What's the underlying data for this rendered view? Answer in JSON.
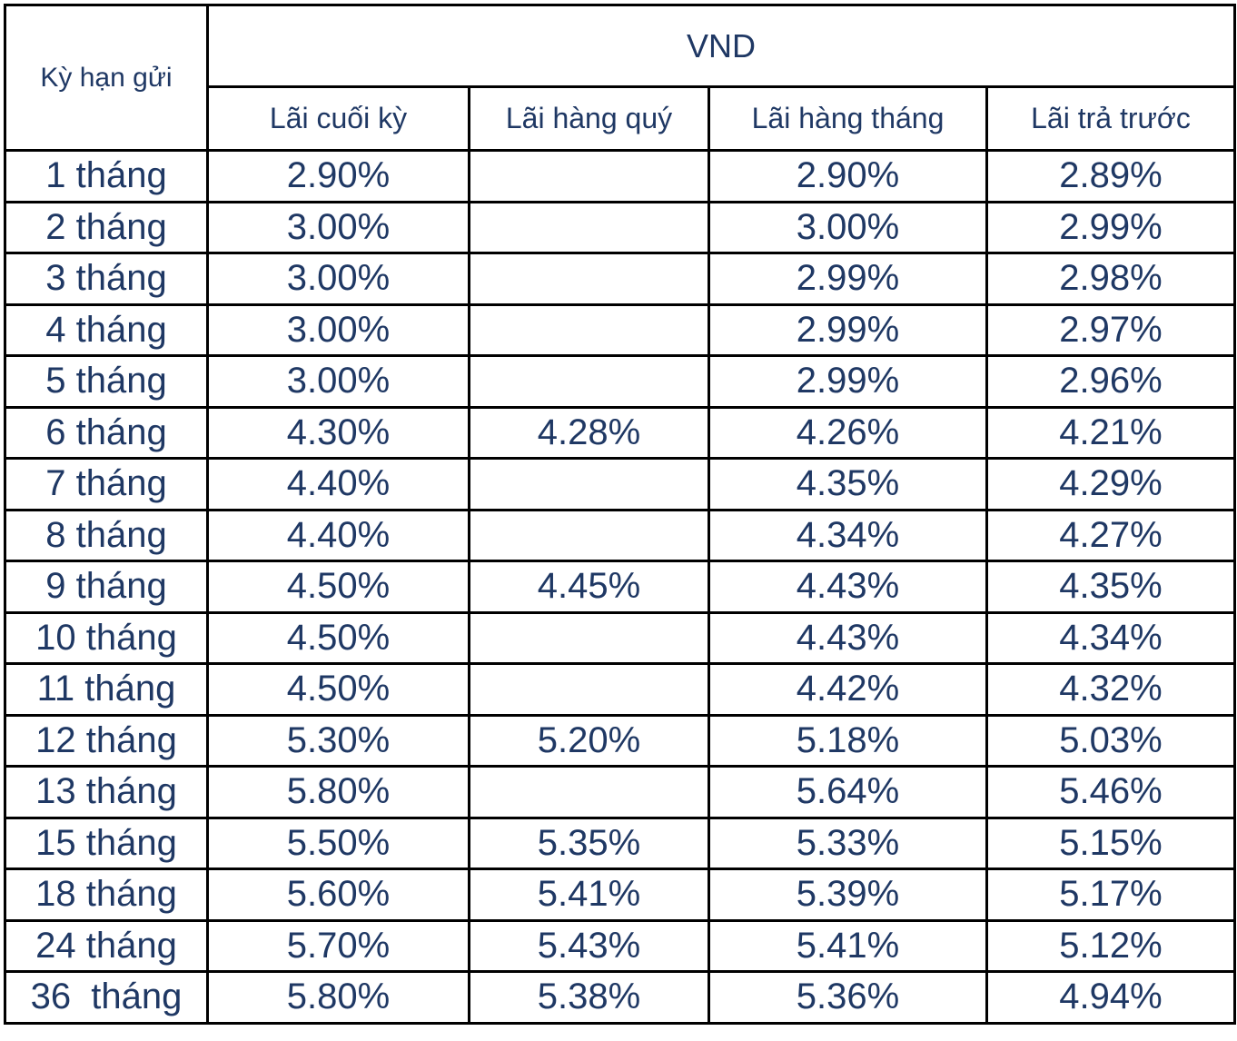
{
  "table": {
    "term_header": "Kỳ hạn gửi",
    "currency_header": "VND",
    "columns": [
      "Lãi cuối kỳ",
      "Lãi hàng quý",
      "Lãi hàng tháng",
      "Lãi trả trước"
    ],
    "rows": [
      {
        "term": "1 tháng",
        "cuoi_ky": "2.90%",
        "hang_quy": "",
        "hang_thang": "2.90%",
        "tra_truoc": "2.89%"
      },
      {
        "term": "2 tháng",
        "cuoi_ky": "3.00%",
        "hang_quy": "",
        "hang_thang": "3.00%",
        "tra_truoc": "2.99%"
      },
      {
        "term": "3 tháng",
        "cuoi_ky": "3.00%",
        "hang_quy": "",
        "hang_thang": "2.99%",
        "tra_truoc": "2.98%"
      },
      {
        "term": "4 tháng",
        "cuoi_ky": "3.00%",
        "hang_quy": "",
        "hang_thang": "2.99%",
        "tra_truoc": "2.97%"
      },
      {
        "term": "5 tháng",
        "cuoi_ky": "3.00%",
        "hang_quy": "",
        "hang_thang": "2.99%",
        "tra_truoc": "2.96%"
      },
      {
        "term": "6 tháng",
        "cuoi_ky": "4.30%",
        "hang_quy": "4.28%",
        "hang_thang": "4.26%",
        "tra_truoc": "4.21%"
      },
      {
        "term": "7 tháng",
        "cuoi_ky": "4.40%",
        "hang_quy": "",
        "hang_thang": "4.35%",
        "tra_truoc": "4.29%"
      },
      {
        "term": "8 tháng",
        "cuoi_ky": "4.40%",
        "hang_quy": "",
        "hang_thang": "4.34%",
        "tra_truoc": "4.27%"
      },
      {
        "term": "9 tháng",
        "cuoi_ky": "4.50%",
        "hang_quy": "4.45%",
        "hang_thang": "4.43%",
        "tra_truoc": "4.35%"
      },
      {
        "term": "10 tháng",
        "cuoi_ky": "4.50%",
        "hang_quy": "",
        "hang_thang": "4.43%",
        "tra_truoc": "4.34%"
      },
      {
        "term": "11 tháng",
        "cuoi_ky": "4.50%",
        "hang_quy": "",
        "hang_thang": "4.42%",
        "tra_truoc": "4.32%"
      },
      {
        "term": "12 tháng",
        "cuoi_ky": "5.30%",
        "hang_quy": "5.20%",
        "hang_thang": "5.18%",
        "tra_truoc": "5.03%"
      },
      {
        "term": "13 tháng",
        "cuoi_ky": "5.80%",
        "hang_quy": "",
        "hang_thang": "5.64%",
        "tra_truoc": "5.46%"
      },
      {
        "term": "15 tháng",
        "cuoi_ky": "5.50%",
        "hang_quy": "5.35%",
        "hang_thang": "5.33%",
        "tra_truoc": "5.15%"
      },
      {
        "term": "18 tháng",
        "cuoi_ky": "5.60%",
        "hang_quy": "5.41%",
        "hang_thang": "5.39%",
        "tra_truoc": "5.17%"
      },
      {
        "term": "24 tháng",
        "cuoi_ky": "5.70%",
        "hang_quy": "5.43%",
        "hang_thang": "5.41%",
        "tra_truoc": "5.12%"
      },
      {
        "term": "36  tháng",
        "cuoi_ky": "5.80%",
        "hang_quy": "5.38%",
        "hang_thang": "5.36%",
        "tra_truoc": "4.94%"
      }
    ]
  },
  "colors": {
    "text": "#1f3864",
    "border": "#000000",
    "background": "#ffffff"
  }
}
